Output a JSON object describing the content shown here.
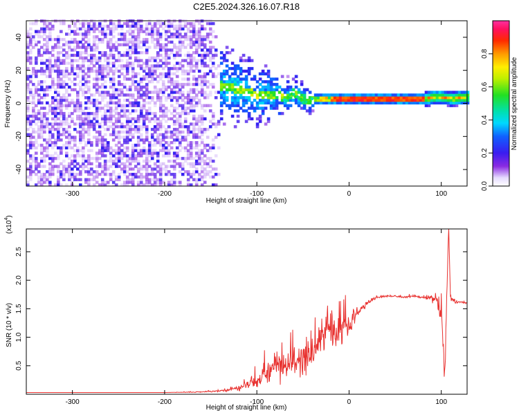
{
  "title": "C2E5.2024.326.16.07.R18",
  "chart_data": [
    {
      "type": "heatmap",
      "xlabel": "Height of straight line (km)",
      "ylabel": "Frequency (Hz)",
      "xlim": [
        -350,
        128
      ],
      "ylim": [
        -50,
        50
      ],
      "x_ticks": [
        -300,
        -200,
        -100,
        0,
        100
      ],
      "x_tick_labels": [
        "-300",
        "-200",
        "-100",
        "0",
        "100"
      ],
      "y_ticks": [
        -40,
        -20,
        0,
        20,
        40
      ],
      "y_tick_labels": [
        "-40",
        "-20",
        "0",
        "20",
        "40"
      ],
      "colorbar": {
        "label": "Normalized spectral amplitude",
        "range": [
          0,
          1
        ],
        "ticks": [
          0.0,
          0.2,
          0.4,
          0.6,
          0.8
        ],
        "tick_labels": [
          "0.0",
          "0.2",
          "0.4",
          "0.6",
          "0.8"
        ],
        "colormap": "rainbow (white-purple-blue-cyan-green-yellow-orange-red-magenta)"
      },
      "regions": [
        {
          "x_range": [
            -350,
            -140
          ],
          "freq_range": [
            -50,
            50
          ],
          "character": "broadband noise speckle",
          "amplitude_range": [
            0.0,
            0.2
          ]
        },
        {
          "x_range": [
            -140,
            -40
          ],
          "freq_range": [
            -25,
            25
          ],
          "character": "transition, noisy with emerging line near 0 Hz",
          "amplitude_range": [
            0.05,
            0.5
          ]
        },
        {
          "x_range": [
            -40,
            128
          ],
          "freq_range": [
            -3,
            6
          ],
          "character": "narrow tone",
          "amplitude_range": [
            0.3,
            1.0
          ]
        }
      ],
      "ridge": {
        "name": "",
        "x": [
          -140,
          -120,
          -100,
          -80,
          -70,
          -60,
          -50,
          -45,
          -40,
          -30,
          -20,
          0,
          20,
          40,
          60,
          80,
          90,
          100,
          110,
          120,
          128
        ],
        "y": [
          10,
          8,
          4,
          5,
          2,
          6,
          2,
          0,
          2,
          2,
          2,
          2,
          2,
          2,
          2,
          2,
          3,
          3,
          2,
          3,
          3
        ]
      },
      "grid": false
    },
    {
      "type": "line",
      "xlabel": "Height of straight line (km)",
      "ylabel": "SNR (10 * v/v)",
      "y_scale_note": "(x10",
      "y_scale_exponent": "4",
      "xlim": [
        -350,
        128
      ],
      "ylim": [
        0,
        29000
      ],
      "x_ticks": [
        -300,
        -200,
        -100,
        0,
        100
      ],
      "x_tick_labels": [
        "-300",
        "-200",
        "-100",
        "0",
        "100"
      ],
      "y_ticks": [
        5000,
        10000,
        15000,
        20000,
        25000
      ],
      "y_tick_labels": [
        "0.5",
        "1.0",
        "1.5",
        "2.0",
        "2.5"
      ],
      "color": "#e8302e",
      "series": [
        {
          "x": [
            -350,
            -300,
            -250,
            -200,
            -160,
            -140,
            -120,
            -100,
            -90,
            -80,
            -70,
            -60,
            -50,
            -40,
            -30,
            -25,
            -20,
            -10,
            0,
            10,
            20,
            30,
            40,
            50,
            60,
            70,
            80,
            90,
            95,
            100,
            104,
            106,
            108,
            110,
            115,
            120,
            128
          ],
          "y": [
            300,
            300,
            300,
            300,
            400,
            600,
            1000,
            2500,
            3500,
            4500,
            5000,
            5500,
            6000,
            7000,
            10000,
            13000,
            12000,
            11000,
            12500,
            14500,
            16000,
            17000,
            17200,
            17200,
            17000,
            17200,
            17000,
            16800,
            16500,
            14000,
            3000,
            18000,
            29000,
            17000,
            16200,
            16200,
            16000
          ],
          "noise": [
            0,
            0,
            0,
            0,
            150,
            250,
            800,
            2000,
            3000,
            4000,
            4500,
            5000,
            5500,
            6000,
            7000,
            7500,
            6500,
            5000,
            4000,
            1500,
            800,
            400,
            300,
            300,
            300,
            300,
            400,
            1500,
            2500,
            3500,
            4000,
            5000,
            3000,
            1500,
            400,
            300,
            300
          ]
        }
      ],
      "grid": false
    }
  ]
}
